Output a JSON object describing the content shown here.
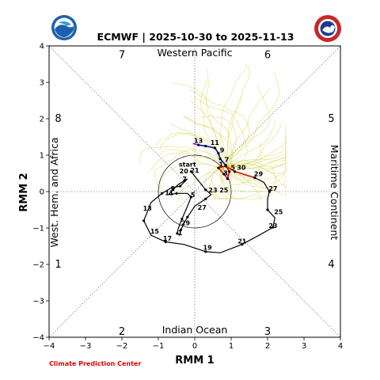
{
  "chart_data": {
    "type": "line",
    "title": "ECMWF | 2025-10-30 to 2025-11-13",
    "xlabel": "RMM 1",
    "ylabel": "RMM 2",
    "xlim": [
      -4,
      4
    ],
    "ylim": [
      -4,
      4
    ],
    "xticks": [
      "−4",
      "−3",
      "−2",
      "−1",
      "0",
      "1",
      "2",
      "3",
      "4"
    ],
    "yticks": [
      "−4",
      "−3",
      "−2",
      "−1",
      "0",
      "1",
      "2",
      "3",
      "4"
    ],
    "phases": [
      "1",
      "2",
      "3",
      "4",
      "5",
      "6",
      "7",
      "8"
    ],
    "regions": {
      "top": "Western Pacific",
      "bottom": "Indian Ocean",
      "left": "West. Hem. and Africa",
      "right": "Maritime Continent"
    },
    "credit": "Climate Prediction Center",
    "colors": {
      "observed": "#000000",
      "forecast_week1": "#ee0000",
      "forecast_week2": "#0000cc",
      "forecast_end": "#cc00cc",
      "ensemble": "#d8d860",
      "credit": "#e00000"
    },
    "observed": {
      "labels": [
        "start",
        "21",
        "7",
        "9",
        "11",
        "5",
        "23",
        "25",
        "27",
        "29",
        "1",
        "3",
        "5",
        "7",
        "9",
        "11",
        "13",
        "15",
        "17",
        "19",
        "21",
        "23",
        "25",
        "27",
        "29",
        "start",
        "21",
        "23",
        "25",
        "27",
        "29",
        "5",
        "3"
      ],
      "points": [
        [
          -0.1,
          0.55
        ],
        [
          0.0,
          0.5
        ],
        [
          -0.3,
          0.25
        ],
        [
          -0.6,
          0.05
        ],
        [
          -0.65,
          -0.08
        ],
        [
          -0.08,
          -0.1
        ],
        [
          0.5,
          -0.05
        ],
        [
          0.75,
          -0.1
        ],
        [
          1.7,
          -0.05
        ],
        [
          2.1,
          0.22
        ],
        [
          1.6,
          0.4
        ],
        [
          0.9,
          -0.1
        ],
        [
          0.1,
          -0.5
        ],
        [
          -0.2,
          -0.9
        ],
        [
          -0.4,
          -1.1
        ],
        [
          -0.38,
          -1.3
        ],
        [
          -0.5,
          -1.05
        ],
        [
          -0.3,
          -0.8
        ],
        [
          -0.2,
          -0.3
        ],
        [
          -0.1,
          -0.1
        ],
        [
          -0.9,
          0.0
        ],
        [
          -1.2,
          -0.3
        ],
        [
          -1.4,
          -0.85
        ],
        [
          -1.25,
          -1.2
        ],
        [
          -0.8,
          -1.38
        ],
        [
          -0.3,
          -1.45
        ],
        [
          0.3,
          -1.65
        ],
        [
          0.7,
          -1.68
        ],
        [
          1.3,
          -1.45
        ],
        [
          1.8,
          -1.18
        ],
        [
          2.15,
          -0.98
        ],
        [
          2.2,
          -0.65
        ],
        [
          2.05,
          -0.55
        ]
      ]
    },
    "observed_labeled": [
      {
        "label": "start",
        "x": -0.2,
        "y": 0.68
      },
      {
        "label": "20",
        "x": -0.3,
        "y": 0.5
      },
      {
        "label": "21",
        "x": 0.0,
        "y": 0.52
      },
      {
        "label": "7",
        "x": -0.28,
        "y": 0.28
      },
      {
        "label": "9",
        "x": -0.6,
        "y": 0.02
      },
      {
        "label": "11",
        "x": -0.7,
        "y": -0.1
      },
      {
        "label": "5",
        "x": -0.05,
        "y": -0.15
      },
      {
        "label": "23",
        "x": 0.5,
        "y": -0.02
      },
      {
        "label": "25",
        "x": 0.8,
        "y": -0.02
      },
      {
        "label": "27",
        "x": 0.2,
        "y": -0.5
      },
      {
        "label": "29",
        "x": -0.25,
        "y": -0.92
      },
      {
        "label": "1",
        "x": -0.4,
        "y": -1.2
      },
      {
        "label": "13",
        "x": -1.3,
        "y": -0.52
      },
      {
        "label": "15",
        "x": -1.1,
        "y": -1.15
      },
      {
        "label": "17",
        "x": -0.75,
        "y": -1.35
      },
      {
        "label": "19",
        "x": 0.35,
        "y": -1.6
      },
      {
        "label": "21",
        "x": 1.3,
        "y": -1.42
      },
      {
        "label": "23",
        "x": 2.15,
        "y": -1.0
      },
      {
        "label": "25",
        "x": 2.3,
        "y": -0.62
      },
      {
        "label": "27",
        "x": 2.15,
        "y": 0.02
      },
      {
        "label": "29",
        "x": 1.75,
        "y": 0.42
      }
    ],
    "observed_path": [
      [
        -0.1,
        0.55
      ],
      [
        0.1,
        0.3
      ],
      [
        0.3,
        0.05
      ],
      [
        0.45,
        -0.08
      ],
      [
        0.3,
        -0.2
      ],
      [
        0.0,
        -0.4
      ],
      [
        -0.2,
        -0.7
      ],
      [
        -0.3,
        -0.88
      ],
      [
        -0.38,
        -1.05
      ],
      [
        -0.42,
        -1.2
      ],
      [
        -0.48,
        -1.15
      ],
      [
        -0.45,
        -1.0
      ],
      [
        -0.35,
        -0.75
      ],
      [
        -0.2,
        -0.4
      ],
      [
        -0.1,
        -0.15
      ],
      [
        -0.2,
        -0.05
      ],
      [
        -0.5,
        -0.05
      ],
      [
        -0.72,
        -0.08
      ],
      [
        -0.6,
        0.05
      ],
      [
        -0.45,
        0.2
      ],
      [
        -0.28,
        0.3
      ],
      [
        -0.2,
        0.35
      ],
      [
        -0.4,
        0.15
      ],
      [
        -0.65,
        0.1
      ],
      [
        -0.9,
        -0.05
      ],
      [
        -1.2,
        -0.3
      ],
      [
        -1.4,
        -0.8
      ],
      [
        -1.2,
        -1.2
      ],
      [
        -0.8,
        -1.38
      ],
      [
        -0.3,
        -1.45
      ],
      [
        0.3,
        -1.65
      ],
      [
        0.7,
        -1.68
      ],
      [
        1.3,
        -1.45
      ],
      [
        1.8,
        -1.18
      ],
      [
        2.15,
        -0.98
      ],
      [
        2.2,
        -0.72
      ],
      [
        2.0,
        -0.5
      ],
      [
        2.0,
        -0.2
      ],
      [
        2.05,
        0.0
      ],
      [
        1.9,
        0.25
      ],
      [
        1.65,
        0.38
      ]
    ],
    "forecast_red": [
      [
        1.65,
        0.38
      ],
      [
        1.1,
        0.55
      ],
      [
        0.85,
        0.7
      ],
      [
        0.65,
        0.65
      ],
      [
        0.8,
        0.48
      ],
      [
        0.9,
        0.35
      ],
      [
        0.95,
        0.55
      ],
      [
        0.85,
        0.72
      ]
    ],
    "forecast_blue": [
      [
        0.85,
        0.72
      ],
      [
        0.7,
        0.9
      ],
      [
        0.65,
        1.05
      ],
      [
        0.55,
        1.2
      ],
      [
        0.3,
        1.25
      ],
      [
        0.1,
        1.28
      ]
    ],
    "forecast_magenta": [
      [
        0.1,
        1.28
      ],
      [
        -0.05,
        1.32
      ]
    ],
    "forecast_labels": [
      {
        "label": "1",
        "x": 0.72,
        "y": 0.68
      },
      {
        "label": "3",
        "x": 0.85,
        "y": 0.45
      },
      {
        "label": "5",
        "x": 1.05,
        "y": 0.6
      },
      {
        "label": "30",
        "x": 1.28,
        "y": 0.6
      },
      {
        "label": "7",
        "x": 0.88,
        "y": 0.82
      },
      {
        "label": "9",
        "x": 0.75,
        "y": 1.08
      },
      {
        "label": "11",
        "x": 0.55,
        "y": 1.28
      },
      {
        "label": "13",
        "x": 0.1,
        "y": 1.34
      }
    ]
  }
}
